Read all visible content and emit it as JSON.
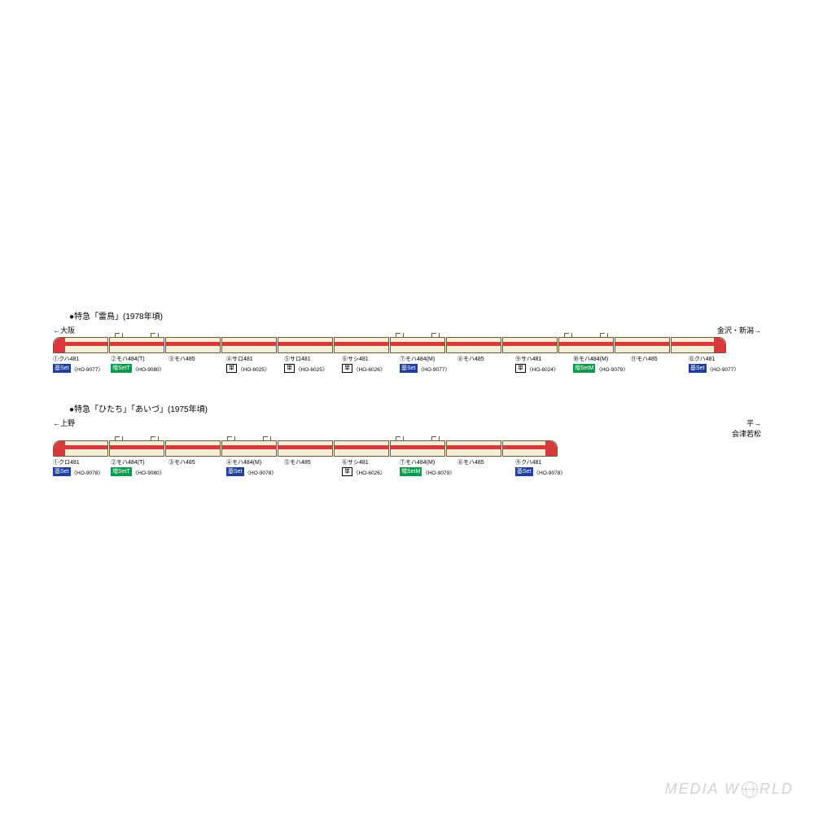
{
  "colors": {
    "car_body": "#f5eed6",
    "car_outline": "#6b5a3a",
    "stripe": "#d9393a",
    "tag_blue": "#1e3f9b",
    "tag_green": "#0a9b4e",
    "background": "#ffffff"
  },
  "watermark": "MEDIA WORLD",
  "formations": [
    {
      "title": "●特急「雷鳥」(1978年頃)",
      "dest_left": "←大阪",
      "dest_right": "金沢・新潟→",
      "cars": [
        {
          "num": "①",
          "name": "クハ481",
          "head": "left",
          "panto": [],
          "tag_type": "blue",
          "tag_text": "基Set",
          "code": "〈HO-9077〉"
        },
        {
          "num": "②",
          "name": "モハ484(T)",
          "panto": [
            "left",
            "right"
          ],
          "tag_type": "green",
          "tag_text": "増SetT",
          "code": "〈HO-9080〉"
        },
        {
          "num": "③",
          "name": "モハ485",
          "panto": [],
          "tag_type": "none",
          "tag_text": "",
          "code": ""
        },
        {
          "num": "④",
          "name": "サロ481",
          "panto": [],
          "tag_type": "white",
          "tag_text": "単",
          "code": "〈HO-6025〉"
        },
        {
          "num": "⑤",
          "name": "サロ481",
          "panto": [],
          "tag_type": "white",
          "tag_text": "単",
          "code": "〈HO-6025〉"
        },
        {
          "num": "⑥",
          "name": "サシ481",
          "panto": [],
          "tag_type": "white",
          "tag_text": "単",
          "code": "〈HO-6026〉"
        },
        {
          "num": "⑦",
          "name": "モハ484(M)",
          "panto": [
            "left",
            "right"
          ],
          "tag_type": "blue",
          "tag_text": "基Set",
          "code": "〈HO-9077〉"
        },
        {
          "num": "⑧",
          "name": "モハ485",
          "panto": [],
          "tag_type": "none",
          "tag_text": "",
          "code": ""
        },
        {
          "num": "⑨",
          "name": "サハ481",
          "panto": [],
          "tag_type": "white",
          "tag_text": "単",
          "code": "〈HO-6024〉"
        },
        {
          "num": "⑩",
          "name": "モハ484(M)",
          "panto": [
            "left",
            "right"
          ],
          "tag_type": "green",
          "tag_text": "増SetM",
          "code": "〈HO-9079〉"
        },
        {
          "num": "⑪",
          "name": "モハ485",
          "panto": [],
          "tag_type": "none",
          "tag_text": "",
          "code": ""
        },
        {
          "num": "⑫",
          "name": "クハ481",
          "head": "right",
          "panto": [],
          "tag_type": "blue",
          "tag_text": "基Set",
          "code": "〈HO-9077〉"
        }
      ]
    },
    {
      "title": "●特急「ひたち」「あいづ」(1975年頃)",
      "dest_left": "←上野",
      "dest_right": "平→\n会津若松",
      "cars": [
        {
          "num": "①",
          "name": "クロ481",
          "head": "left",
          "panto": [],
          "tag_type": "blue",
          "tag_text": "基Set",
          "code": "〈HO-9078〉"
        },
        {
          "num": "②",
          "name": "モハ484(T)",
          "panto": [
            "left",
            "right"
          ],
          "tag_type": "green",
          "tag_text": "増SetT",
          "code": "〈HO-9080〉"
        },
        {
          "num": "③",
          "name": "モハ485",
          "panto": [],
          "tag_type": "none",
          "tag_text": "",
          "code": ""
        },
        {
          "num": "④",
          "name": "モハ484(M)",
          "panto": [
            "left",
            "right"
          ],
          "tag_type": "blue",
          "tag_text": "基Set",
          "code": "〈HO-9078〉"
        },
        {
          "num": "⑤",
          "name": "モハ485",
          "panto": [],
          "tag_type": "none",
          "tag_text": "",
          "code": ""
        },
        {
          "num": "⑥",
          "name": "サシ481",
          "panto": [],
          "tag_type": "white",
          "tag_text": "単",
          "code": "〈HO-6026〉"
        },
        {
          "num": "⑦",
          "name": "モハ484(M)",
          "panto": [
            "left",
            "right"
          ],
          "tag_type": "green",
          "tag_text": "増SetM",
          "code": "〈HO-9079〉"
        },
        {
          "num": "⑧",
          "name": "モハ485",
          "panto": [],
          "tag_type": "none",
          "tag_text": "",
          "code": ""
        },
        {
          "num": "⑨",
          "name": "クハ481",
          "head": "right",
          "panto": [],
          "tag_type": "blue",
          "tag_text": "基Set",
          "code": "〈HO-9078〉"
        }
      ]
    }
  ]
}
